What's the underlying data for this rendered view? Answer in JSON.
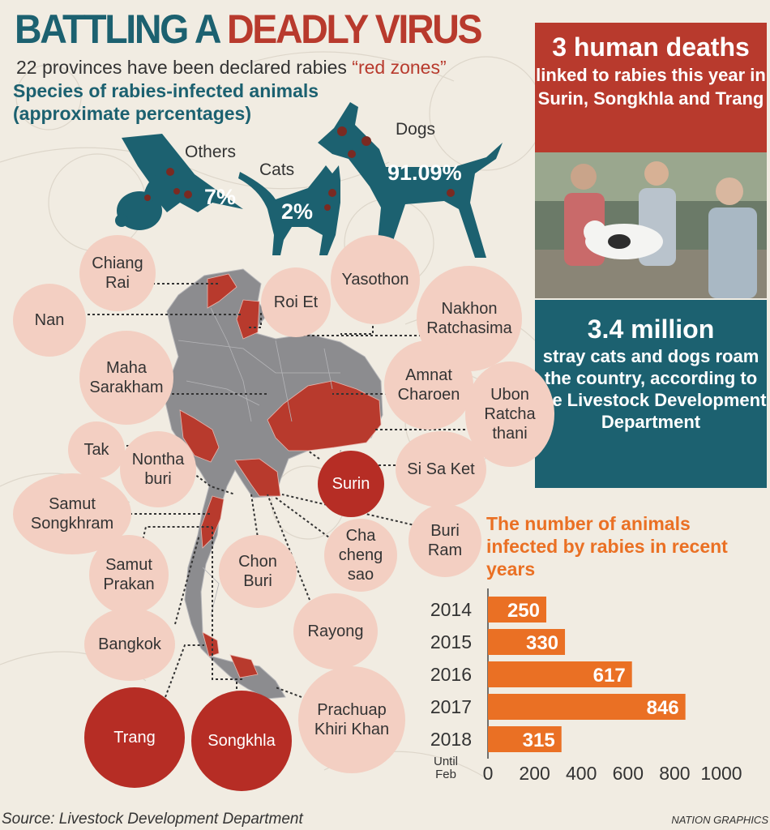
{
  "header": {
    "title_part1": "BATTLING A",
    "title_part2": "DEADLY VIRUS",
    "subtitle_text": "22 provinces have been declared rabies ",
    "subtitle_highlight": "“red zones”"
  },
  "species": {
    "heading": "Species of rabies-infected animals (approximate percentages)",
    "items": [
      {
        "name": "Others",
        "percent": "7%"
      },
      {
        "name": "Cats",
        "percent": "2%"
      },
      {
        "name": "Dogs",
        "percent": "91.09%"
      }
    ]
  },
  "deaths": {
    "headline": "3 human deaths",
    "detail": "linked to rabies this year in Surin, Songkhla and Trang"
  },
  "stray": {
    "headline": "3.4 million",
    "detail": "stray cats and dogs roam the country, according to the Livestock Development Department"
  },
  "provinces": {
    "chiang_rai": "Chiang\nRai",
    "nan": "Nan",
    "roi_et": "Roi Et",
    "yasothon": "Yasothon",
    "nakhon_ratchasima": "Nakhon\nRatchasima",
    "maha_sarakham": "Maha\nSarakham",
    "amnat_charoen": "Amnat\nCharoen",
    "ubon_ratchathani": "Ubon\nRatcha\nthani",
    "tak": "Tak",
    "nonthaburi": "Nontha\nburi",
    "surin": "Surin",
    "si_sa_ket": "Si Sa Ket",
    "samut_songkhram": "Samut\nSongkhram",
    "buri_ram": "Buri\nRam",
    "chachoengsao": "Cha\ncheng\nsao",
    "samut_prakan": "Samut\nPrakan",
    "chon_buri": "Chon\nBuri",
    "rayong": "Rayong",
    "bangkok": "Bangkok",
    "trang": "Trang",
    "songkhla": "Songkhla",
    "prachuap": "Prachuap\nKhiri Khan"
  },
  "chart_data": {
    "type": "bar",
    "orientation": "horizontal",
    "title": "The number of animals infected by rabies in recent years",
    "categories": [
      "2014",
      "2015",
      "2016",
      "2017",
      "2018"
    ],
    "category_note": {
      "2018": "Until\nFeb"
    },
    "values": [
      250,
      330,
      617,
      846,
      315
    ],
    "xlim": [
      0,
      1000
    ],
    "xticks": [
      0,
      200,
      400,
      600,
      800,
      1000
    ],
    "bar_color": "#ea7024",
    "grid": false
  },
  "footer": {
    "source": "Source: Livestock Development Department",
    "credit": "NATION GRAPHICS"
  },
  "colors": {
    "teal": "#1c6170",
    "red": "#b83a2d",
    "orange": "#ea7024",
    "pink": "#f3cfc2",
    "map_grey": "#8c8c8f"
  }
}
